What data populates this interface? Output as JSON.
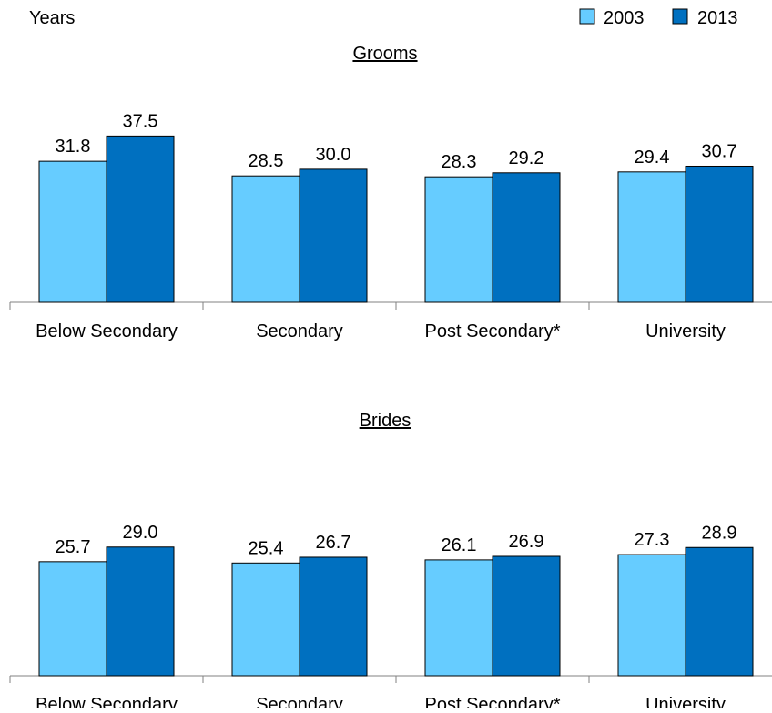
{
  "chart_data": {
    "type": "bar",
    "ylabel": "Years",
    "categories": [
      "Below Secondary",
      "Secondary",
      "Post Secondary*",
      "University"
    ],
    "legend": {
      "position": "top-right",
      "entries": [
        "2003",
        "2013"
      ]
    },
    "colors": {
      "2003": "#66ccff",
      "2013": "#0070c0"
    },
    "panels": [
      {
        "title": "Grooms",
        "series": [
          {
            "name": "2003",
            "values": [
              31.8,
              28.5,
              28.3,
              29.4
            ]
          },
          {
            "name": "2013",
            "values": [
              37.5,
              30.0,
              29.2,
              30.7
            ]
          }
        ],
        "data_labels": {
          "2003": [
            "31.8",
            "28.5",
            "28.3",
            "29.4"
          ],
          "2013": [
            "37.5",
            "30.0",
            "29.2",
            "30.7"
          ]
        }
      },
      {
        "title": "Brides",
        "series": [
          {
            "name": "2003",
            "values": [
              25.7,
              25.4,
              26.1,
              27.3
            ]
          },
          {
            "name": "2013",
            "values": [
              29.0,
              26.7,
              26.9,
              28.9
            ]
          }
        ],
        "data_labels": {
          "2003": [
            "25.7",
            "25.4",
            "26.1",
            "27.3"
          ],
          "2013": [
            "29.0",
            "26.7",
            "26.9",
            "28.9"
          ]
        }
      }
    ]
  }
}
